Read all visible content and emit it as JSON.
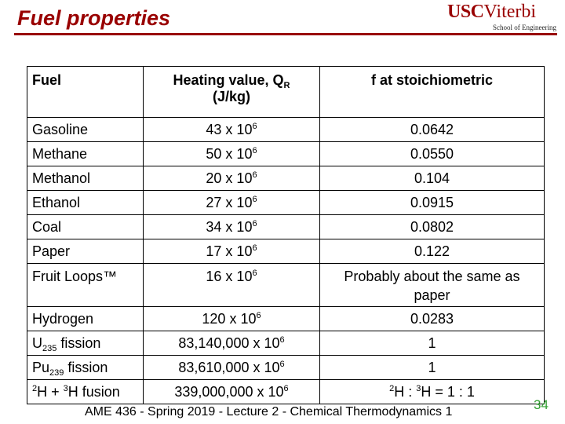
{
  "header": {
    "title": "Fuel properties",
    "logo_main": "USC",
    "logo_main2": "Viterbi",
    "logo_sub": "School of Engineering"
  },
  "table": {
    "headers": {
      "fuel": "Fuel",
      "heating_value_pre": "Heating value, Q",
      "heating_value_sub": "R",
      "heating_value_units": "(J/kg)",
      "f": "f at stoichiometric"
    },
    "rows": [
      {
        "fuel": "Gasoline",
        "hv": "43 x 10",
        "hv_exp": "6",
        "f": "0.0642"
      },
      {
        "fuel": "Methane",
        "hv": "50 x 10",
        "hv_exp": "6",
        "f": "0.0550"
      },
      {
        "fuel": "Methanol",
        "hv": "20 x 10",
        "hv_exp": "6",
        "f": "0.104"
      },
      {
        "fuel": "Ethanol",
        "hv": "27 x 10",
        "hv_exp": "6",
        "f": "0.0915"
      },
      {
        "fuel": "Coal",
        "hv": "34 x 10",
        "hv_exp": "6",
        "f": "0.0802"
      },
      {
        "fuel": "Paper",
        "hv": "17 x 10",
        "hv_exp": "6",
        "f": "0.122"
      },
      {
        "fuel": "Fruit Loops™",
        "hv": "16 x 10",
        "hv_exp": "6",
        "f": "Probably about the same as paper"
      },
      {
        "fuel": "Hydrogen",
        "hv": "120 x 10",
        "hv_exp": "6",
        "f": "0.0283"
      },
      {
        "fuel_pre": "U",
        "fuel_sub": "235",
        "fuel_post": " fission",
        "hv": "83,140,000 x 10",
        "hv_exp": "6",
        "f": "1"
      },
      {
        "fuel_pre": "Pu",
        "fuel_sub": "239",
        "fuel_post": " fission",
        "hv": "83,610,000 x 10",
        "hv_exp": "6",
        "f": "1"
      },
      {
        "fuel_sup1": "2",
        "fuel_a": "H + ",
        "fuel_sup2": "3",
        "fuel_b": "H fusion",
        "hv": "339,000,000 x 10",
        "hv_exp": "6",
        "f_sup1": "2",
        "f_a": "H : ",
        "f_sup2": "3",
        "f_b": "H = 1 : 1"
      }
    ]
  },
  "footer": {
    "text": "AME 436 - Spring 2019 - Lecture 2 - Chemical Thermodynamics 1",
    "page": "34"
  }
}
